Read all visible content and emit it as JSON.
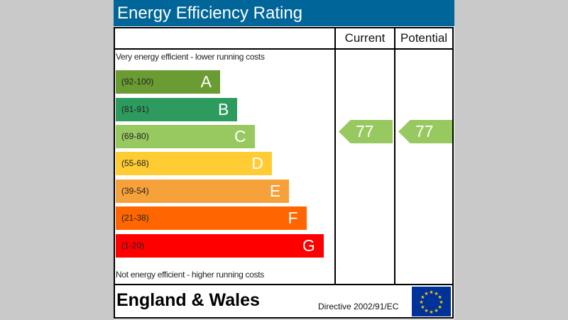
{
  "title": "Energy Efficiency Rating",
  "columns": {
    "current": "Current",
    "potential": "Potential"
  },
  "top_note": "Very energy efficient - lower running costs",
  "bottom_note": "Not energy efficient - higher running costs",
  "region": "England & Wales",
  "directive": "Directive 2002/91/EC",
  "chart_data": {
    "type": "bar",
    "title": "Energy Efficiency Rating",
    "bands": [
      {
        "letter": "A",
        "range": "(92-100)",
        "color": "#6a9c33"
      },
      {
        "letter": "B",
        "range": "(81-91)",
        "color": "#2e9b5e"
      },
      {
        "letter": "C",
        "range": "(69-80)",
        "color": "#98c860"
      },
      {
        "letter": "D",
        "range": "(55-68)",
        "color": "#ffcc33"
      },
      {
        "letter": "E",
        "range": "(39-54)",
        "color": "#f7a13a"
      },
      {
        "letter": "F",
        "range": "(21-38)",
        "color": "#ff6600"
      },
      {
        "letter": "G",
        "range": "(1-20)",
        "color": "#ff0000"
      }
    ],
    "current": {
      "value": "77",
      "band": "C"
    },
    "potential": {
      "value": "77",
      "band": "C"
    }
  }
}
